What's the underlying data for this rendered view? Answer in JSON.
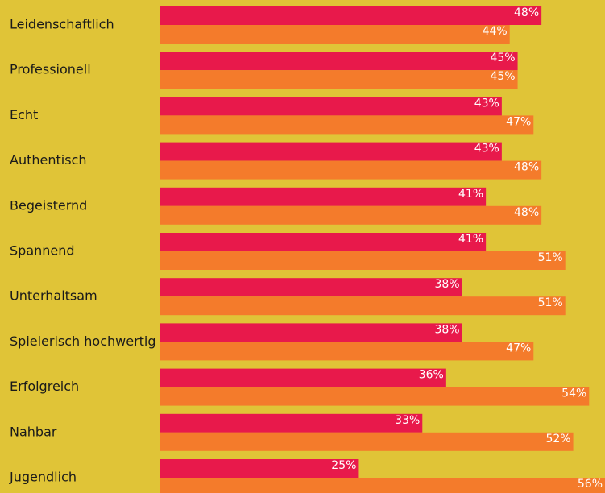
{
  "chart_data": {
    "type": "hbar",
    "categories": [
      "Leidenschaftlich",
      "Professionell",
      "Echt",
      "Authentisch",
      "Begeisternd",
      "Spannend",
      "Unterhaltsam",
      "Spielerisch hochwertig",
      "Erfolgreich",
      "Nahbar",
      "Jugendlich"
    ],
    "series": [
      {
        "color": "#e8194b",
        "values": [
          48,
          45,
          43,
          43,
          41,
          41,
          38,
          38,
          36,
          33,
          25
        ],
        "value_labels": [
          "48%",
          "45%",
          "43%",
          "43%",
          "41%",
          "41%",
          "38%",
          "38%",
          "36%",
          "33%",
          "25%"
        ]
      },
      {
        "color": "#f47b2b",
        "values": [
          44,
          45,
          47,
          48,
          48,
          51,
          51,
          47,
          54,
          52,
          56
        ],
        "value_labels": [
          "44%",
          "45%",
          "47%",
          "48%",
          "48%",
          "51%",
          "51%",
          "47%",
          "54%",
          "52%",
          "56%"
        ]
      }
    ],
    "xlim": [
      0,
      56
    ]
  }
}
